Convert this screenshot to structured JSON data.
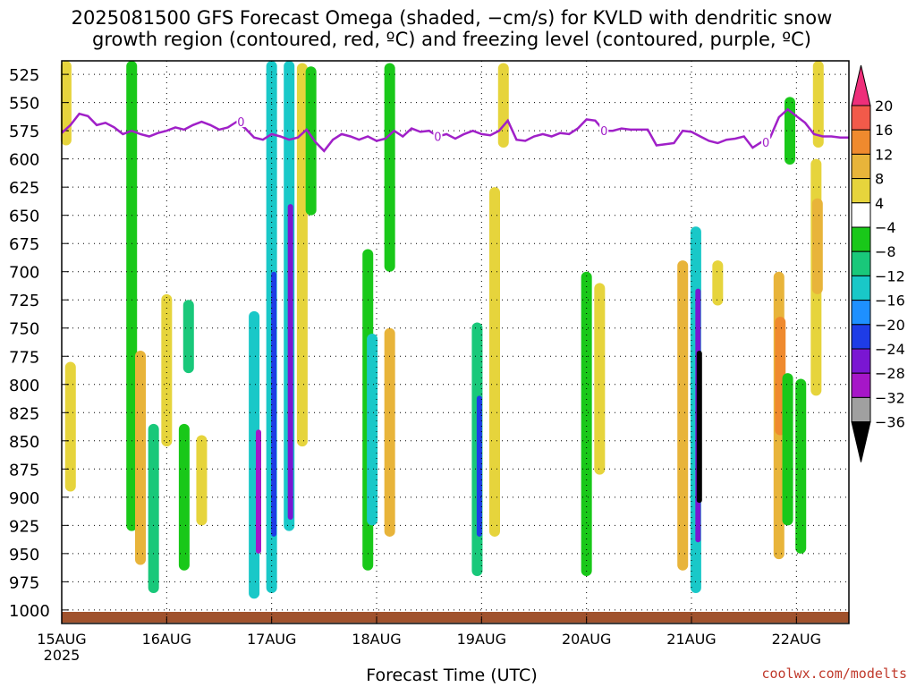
{
  "title_line1": "2025081500 GFS Forecast Omega (shaded, −cm/s) for KVLD with dendritic snow",
  "title_line2": "growth region (contoured, red, ºC) and freezing level (contoured, purple, ºC)",
  "credit": "coolwx.com/modelts",
  "chart_data": {
    "type": "heatmap",
    "title": "2025081500 GFS Forecast Omega (shaded, −cm/s) for KVLD with dendritic snow growth region (contoured, red, ºC) and freezing level (contoured, purple, ºC)",
    "xlabel": "Forecast Time (UTC)",
    "ylabel": "",
    "x_range_hours": [
      0,
      180
    ],
    "x_ticks": [
      {
        "hour": 0,
        "label": "15AUG",
        "sublabel": "2025"
      },
      {
        "hour": 24,
        "label": "16AUG"
      },
      {
        "hour": 48,
        "label": "17AUG"
      },
      {
        "hour": 72,
        "label": "18AUG"
      },
      {
        "hour": 96,
        "label": "19AUG"
      },
      {
        "hour": 120,
        "label": "20AUG"
      },
      {
        "hour": 144,
        "label": "21AUG"
      },
      {
        "hour": 168,
        "label": "22AUG"
      }
    ],
    "y_axis": "pressure (hPa), inverted",
    "y_range": [
      1012,
      513
    ],
    "y_ticks": [
      525,
      550,
      575,
      600,
      625,
      650,
      675,
      700,
      725,
      750,
      775,
      800,
      825,
      850,
      875,
      900,
      925,
      950,
      975,
      1000
    ],
    "grid": true,
    "colorbar": {
      "labels": [
        "20",
        "16",
        "12",
        "8",
        "4",
        "−4",
        "−8",
        "−12",
        "−16",
        "−20",
        "−24",
        "−28",
        "−32",
        "−36"
      ],
      "colors": [
        "#ee2f7a",
        "#f25a4a",
        "#ef8a2e",
        "#e8b43a",
        "#e6d43c",
        "#ffffff",
        "#19c819",
        "#19c87a",
        "#19c8c8",
        "#1e90ff",
        "#1e3ce6",
        "#7a16d2",
        "#a616c8",
        "#a0a0a0",
        "#000000"
      ]
    },
    "freezing_level": {
      "color": "#a020c8",
      "label": "0",
      "points": [
        [
          0,
          577
        ],
        [
          2,
          570
        ],
        [
          4,
          560
        ],
        [
          6,
          562
        ],
        [
          8,
          570
        ],
        [
          10,
          568
        ],
        [
          12,
          572
        ],
        [
          14,
          578
        ],
        [
          16,
          575
        ],
        [
          18,
          578
        ],
        [
          20,
          580
        ],
        [
          22,
          577
        ],
        [
          24,
          575
        ],
        [
          26,
          572
        ],
        [
          28,
          574
        ],
        [
          30,
          570
        ],
        [
          32,
          567
        ],
        [
          34,
          570
        ],
        [
          36,
          574
        ],
        [
          38,
          572
        ],
        [
          40,
          567
        ],
        [
          42,
          573
        ],
        [
          44,
          581
        ],
        [
          46,
          583
        ],
        [
          48,
          578
        ],
        [
          50,
          580
        ],
        [
          52,
          583
        ],
        [
          54,
          581
        ],
        [
          56,
          574
        ],
        [
          58,
          585
        ],
        [
          60,
          593
        ],
        [
          62,
          583
        ],
        [
          64,
          578
        ],
        [
          66,
          580
        ],
        [
          68,
          583
        ],
        [
          70,
          580
        ],
        [
          72,
          584
        ],
        [
          74,
          582
        ],
        [
          76,
          575
        ],
        [
          78,
          580
        ],
        [
          80,
          573
        ],
        [
          82,
          576
        ],
        [
          84,
          575
        ],
        [
          86,
          580
        ],
        [
          88,
          578
        ],
        [
          90,
          582
        ],
        [
          92,
          578
        ],
        [
          94,
          575
        ],
        [
          96,
          578
        ],
        [
          98,
          579
        ],
        [
          100,
          575
        ],
        [
          102,
          566
        ],
        [
          104,
          583
        ],
        [
          106,
          584
        ],
        [
          108,
          580
        ],
        [
          110,
          578
        ],
        [
          112,
          580
        ],
        [
          114,
          577
        ],
        [
          116,
          578
        ],
        [
          118,
          573
        ],
        [
          120,
          565
        ],
        [
          122,
          566
        ],
        [
          124,
          575
        ],
        [
          126,
          575
        ],
        [
          128,
          573
        ],
        [
          130,
          574
        ],
        [
          132,
          574
        ],
        [
          134,
          574
        ],
        [
          136,
          588
        ],
        [
          138,
          587
        ],
        [
          140,
          586
        ],
        [
          142,
          575
        ],
        [
          144,
          576
        ],
        [
          146,
          580
        ],
        [
          148,
          584
        ],
        [
          150,
          586
        ],
        [
          152,
          583
        ],
        [
          154,
          582
        ],
        [
          156,
          580
        ],
        [
          158,
          590
        ],
        [
          160,
          585
        ],
        [
          162,
          581
        ],
        [
          164,
          563
        ],
        [
          166,
          556
        ],
        [
          168,
          562
        ],
        [
          170,
          568
        ],
        [
          172,
          578
        ],
        [
          174,
          580
        ],
        [
          176,
          580
        ],
        [
          178,
          581
        ],
        [
          180,
          581
        ]
      ],
      "zero_labels_at_hours": [
        41,
        86,
        124,
        161
      ]
    },
    "surface_band_color": "#a0522d",
    "omega_features": [
      {
        "hour": 1,
        "p_top": 500,
        "p_bottom": 588,
        "value": 6
      },
      {
        "hour": 2,
        "p_top": 780,
        "p_bottom": 895,
        "value": 6
      },
      {
        "hour": 16,
        "p_top": 500,
        "p_bottom": 930,
        "value": -6
      },
      {
        "hour": 18,
        "p_top": 770,
        "p_bottom": 960,
        "value": 8
      },
      {
        "hour": 21,
        "p_top": 835,
        "p_bottom": 985,
        "value": -10
      },
      {
        "hour": 24,
        "p_top": 720,
        "p_bottom": 855,
        "value": 6
      },
      {
        "hour": 29,
        "p_top": 725,
        "p_bottom": 790,
        "value": -10
      },
      {
        "hour": 28,
        "p_top": 835,
        "p_bottom": 965,
        "value": -7
      },
      {
        "hour": 32,
        "p_top": 845,
        "p_bottom": 925,
        "value": 7
      },
      {
        "hour": 44,
        "p_top": 735,
        "p_bottom": 990,
        "value": -14
      },
      {
        "hour": 45,
        "p_top": 840,
        "p_bottom": 950,
        "value": -30
      },
      {
        "hour": 48,
        "p_top": 500,
        "p_bottom": 985,
        "value": -16
      },
      {
        "hour": 48.5,
        "p_top": 700,
        "p_bottom": 935,
        "value": -22
      },
      {
        "hour": 52,
        "p_top": 510,
        "p_bottom": 930,
        "value": -14
      },
      {
        "hour": 52.3,
        "p_top": 640,
        "p_bottom": 920,
        "value": -26
      },
      {
        "hour": 55,
        "p_top": 515,
        "p_bottom": 855,
        "value": 6
      },
      {
        "hour": 57,
        "p_top": 518,
        "p_bottom": 650,
        "value": -8
      },
      {
        "hour": 70,
        "p_top": 680,
        "p_bottom": 965,
        "value": -8
      },
      {
        "hour": 71,
        "p_top": 755,
        "p_bottom": 925,
        "value": -14
      },
      {
        "hour": 75,
        "p_top": 515,
        "p_bottom": 700,
        "value": -6
      },
      {
        "hour": 75,
        "p_top": 750,
        "p_bottom": 935,
        "value": 8
      },
      {
        "hour": 95,
        "p_top": 745,
        "p_bottom": 970,
        "value": -12
      },
      {
        "hour": 95.5,
        "p_top": 810,
        "p_bottom": 935,
        "value": -24
      },
      {
        "hour": 99,
        "p_top": 625,
        "p_bottom": 935,
        "value": 6
      },
      {
        "hour": 101,
        "p_top": 515,
        "p_bottom": 590,
        "value": 6
      },
      {
        "hour": 120,
        "p_top": 700,
        "p_bottom": 970,
        "value": -7
      },
      {
        "hour": 123,
        "p_top": 710,
        "p_bottom": 880,
        "value": 7
      },
      {
        "hour": 145,
        "p_top": 660,
        "p_bottom": 985,
        "value": -16
      },
      {
        "hour": 145.5,
        "p_top": 715,
        "p_bottom": 940,
        "value": -28
      },
      {
        "hour": 145.8,
        "p_top": 770,
        "p_bottom": 905,
        "value": -38
      },
      {
        "hour": 142,
        "p_top": 690,
        "p_bottom": 965,
        "value": 8
      },
      {
        "hour": 150,
        "p_top": 690,
        "p_bottom": 730,
        "value": 6
      },
      {
        "hour": 164,
        "p_top": 700,
        "p_bottom": 955,
        "value": 9
      },
      {
        "hour": 164.3,
        "p_top": 740,
        "p_bottom": 845,
        "value": 12
      },
      {
        "hour": 166,
        "p_top": 790,
        "p_bottom": 925,
        "value": -8
      },
      {
        "hour": 169,
        "p_top": 795,
        "p_bottom": 950,
        "value": -7
      },
      {
        "hour": 173,
        "p_top": 500,
        "p_bottom": 590,
        "value": 6
      },
      {
        "hour": 172.5,
        "p_top": 600,
        "p_bottom": 810,
        "value": 7
      },
      {
        "hour": 172.8,
        "p_top": 635,
        "p_bottom": 720,
        "value": 10
      },
      {
        "hour": 166.5,
        "p_top": 545,
        "p_bottom": 605,
        "value": -8
      }
    ]
  }
}
